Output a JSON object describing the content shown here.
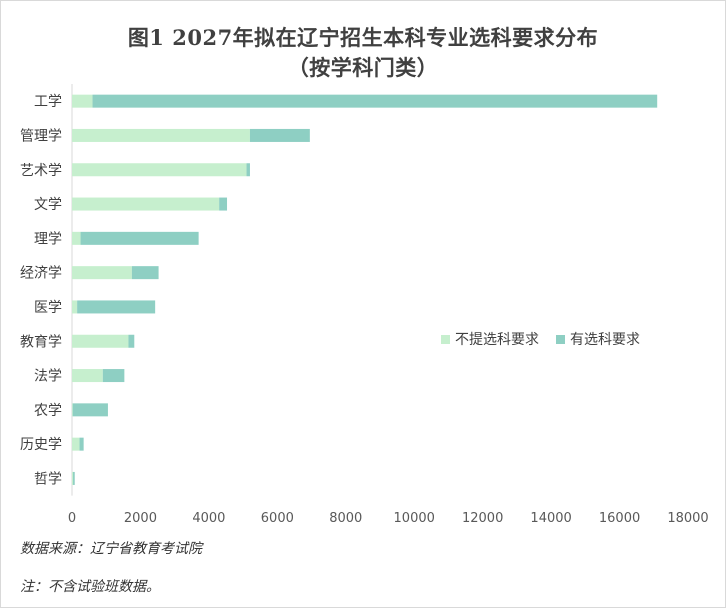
{
  "chart_data": {
    "type": "bar",
    "orientation": "horizontal",
    "stacked": true,
    "title": "图1 2027年拟在辽宁招生本科专业选科要求分布",
    "subtitle": "（按学科门类）",
    "categories": [
      "工学",
      "管理学",
      "艺术学",
      "文学",
      "理学",
      "经济学",
      "医学",
      "教育学",
      "法学",
      "农学",
      "历史学",
      "哲学"
    ],
    "series": [
      {
        "name": "不提选科要求",
        "color": "#c6efce",
        "values": [
          600,
          5200,
          5100,
          4300,
          250,
          1750,
          150,
          1650,
          900,
          20,
          220,
          30
        ]
      },
      {
        "name": "有选科要求",
        "color": "#8ecfc3",
        "values": [
          16500,
          1750,
          100,
          230,
          3450,
          780,
          2280,
          170,
          630,
          1030,
          120,
          50
        ]
      }
    ],
    "x_ticks": [
      "0",
      "2000",
      "4000",
      "6000",
      "8000",
      "10000",
      "12000",
      "14000",
      "16000",
      "18000"
    ],
    "xlim": [
      0,
      18000
    ],
    "legend_position": "right"
  },
  "footer": {
    "source": "数据来源：辽宁省教育考试院",
    "note": "注：不含试验班数据。"
  }
}
